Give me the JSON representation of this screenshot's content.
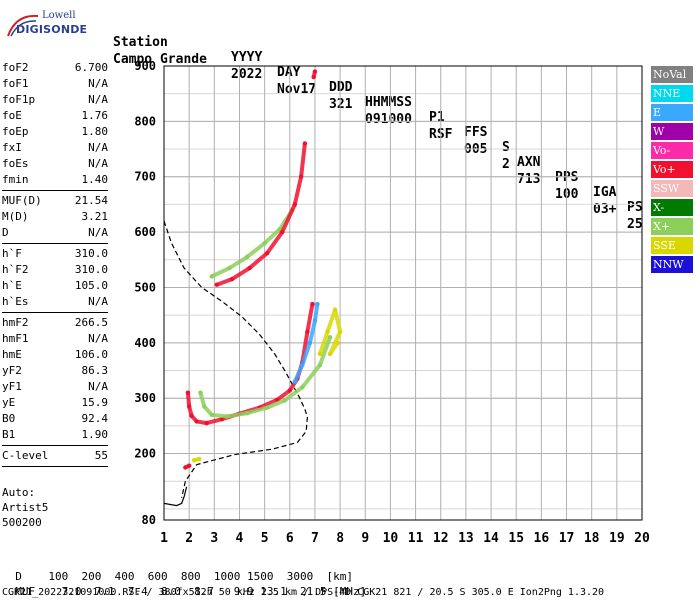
{
  "logo": {
    "top": "Lowell",
    "main": "DIGISONDE"
  },
  "header": {
    "row1": [
      "Station",
      "YYYY",
      "DAY",
      "DDD",
      "HHMMSS",
      "P1",
      "FFS",
      "S",
      "AXN",
      "PPS",
      "IGA",
      "PS"
    ],
    "row2": [
      "Campo Grande",
      "2022",
      "Nov17",
      "321",
      "091000",
      "RSF",
      "005",
      "2",
      "713",
      "100",
      "03+",
      "25"
    ]
  },
  "params": [
    {
      "k": "foF2",
      "v": "6.700"
    },
    {
      "k": "foF1",
      "v": "N/A"
    },
    {
      "k": "foF1p",
      "v": "N/A"
    },
    {
      "k": "foE",
      "v": "1.76"
    },
    {
      "k": "foEp",
      "v": "1.80"
    },
    {
      "k": "fxI",
      "v": "N/A"
    },
    {
      "k": "foEs",
      "v": "N/A"
    },
    {
      "k": "fmin",
      "v": "1.40"
    },
    {
      "k": "MUF(D)",
      "v": "21.54"
    },
    {
      "k": "M(D)",
      "v": "3.21"
    },
    {
      "k": "D",
      "v": "N/A"
    },
    {
      "k": "h`F",
      "v": "310.0"
    },
    {
      "k": "h`F2",
      "v": "310.0"
    },
    {
      "k": "h`E",
      "v": "105.0"
    },
    {
      "k": "h`Es",
      "v": "N/A"
    },
    {
      "k": "hmF2",
      "v": "266.5"
    },
    {
      "k": "hmF1",
      "v": "N/A"
    },
    {
      "k": "hmE",
      "v": "106.0"
    },
    {
      "k": "yF2",
      "v": "86.3"
    },
    {
      "k": "yF1",
      "v": "N/A"
    },
    {
      "k": "yE",
      "v": "15.9"
    },
    {
      "k": "B0",
      "v": "92.4"
    },
    {
      "k": "B1",
      "v": "1.90"
    },
    {
      "k": "C-level",
      "v": "55"
    }
  ],
  "auto": {
    "line1": "Auto:",
    "line2": "Artist5",
    "line3": "500200"
  },
  "legend": [
    {
      "label": "NoVal",
      "color": "#808080"
    },
    {
      "label": "NNE",
      "color": "#00d8f0"
    },
    {
      "label": "E",
      "color": "#3aa8ff"
    },
    {
      "label": "W",
      "color": "#a000a8"
    },
    {
      "label": "Vo-",
      "color": "#ff2aa8"
    },
    {
      "label": "Vo+",
      "color": "#f01030"
    },
    {
      "label": "SSW",
      "color": "#f4b8b8"
    },
    {
      "label": "X-",
      "color": "#007a00"
    },
    {
      "label": "X+",
      "color": "#8ccf5a"
    },
    {
      "label": "SSE",
      "color": "#d8d800"
    },
    {
      "label": "NNW",
      "color": "#1a10d8"
    }
  ],
  "footer": {
    "d_label": "D",
    "d_values": [
      "100",
      "200",
      "400",
      "600",
      "800",
      "1000",
      "1500",
      "3000",
      "[km]"
    ],
    "muf_label": "MUF",
    "muf_values": [
      "7.0",
      "7.1",
      "7.4",
      "8.0",
      "8.7",
      "9.9",
      "13.1",
      "21.5",
      "[MHz]"
    ],
    "info": "CGK21_2022321091000.RSF / 380fx512h 50 kHz 2.5 km / DPS-4D CGK21 821 / 20.5 S 305.0 E Ion2Png 1.3.20"
  },
  "chart_data": {
    "type": "scatter",
    "title": "",
    "xlabel": "",
    "ylabel": "",
    "xlim": [
      1,
      20
    ],
    "ylim": [
      80,
      900
    ],
    "x_ticks": [
      1,
      2,
      3,
      4,
      5,
      6,
      7,
      8,
      9,
      10,
      11,
      12,
      13,
      14,
      15,
      16,
      17,
      18,
      19,
      20
    ],
    "y_ticks": [
      80,
      200,
      300,
      400,
      500,
      600,
      700,
      800,
      900
    ],
    "grid": true,
    "series": [
      {
        "name": "Vo+",
        "color": "#f01030",
        "trace": [
          [
            1.95,
            310
          ],
          [
            2.0,
            285
          ],
          [
            2.1,
            268
          ],
          [
            2.3,
            258
          ],
          [
            2.7,
            255
          ],
          [
            3.3,
            262
          ],
          [
            4.0,
            272
          ],
          [
            4.8,
            283
          ],
          [
            5.5,
            297
          ],
          [
            6.0,
            314
          ],
          [
            6.3,
            335
          ],
          [
            6.5,
            365
          ],
          [
            6.7,
            420
          ],
          [
            6.9,
            470
          ]
        ]
      },
      {
        "name": "X+",
        "color": "#8ccf5a",
        "trace": [
          [
            2.45,
            310
          ],
          [
            2.6,
            285
          ],
          [
            2.9,
            270
          ],
          [
            3.5,
            267
          ],
          [
            4.3,
            273
          ],
          [
            5.1,
            283
          ],
          [
            5.8,
            296
          ],
          [
            6.5,
            320
          ],
          [
            7.2,
            360
          ],
          [
            7.6,
            410
          ]
        ]
      },
      {
        "name": "X+",
        "color": "#8ccf5a",
        "trace": [
          [
            2.9,
            520
          ],
          [
            3.6,
            535
          ],
          [
            4.3,
            555
          ],
          [
            5.0,
            580
          ],
          [
            5.6,
            605
          ],
          [
            6.1,
            640
          ]
        ]
      },
      {
        "name": "Vo+",
        "color": "#f01030",
        "trace": [
          [
            3.1,
            505
          ],
          [
            3.7,
            515
          ],
          [
            4.4,
            535
          ],
          [
            5.1,
            562
          ],
          [
            5.7,
            600
          ],
          [
            6.2,
            650
          ],
          [
            6.45,
            700
          ],
          [
            6.6,
            760
          ]
        ]
      },
      {
        "name": "SSE",
        "color": "#d8d800",
        "trace": [
          [
            7.2,
            380
          ],
          [
            7.5,
            420
          ],
          [
            7.8,
            460
          ],
          [
            8.0,
            420
          ],
          [
            7.6,
            380
          ],
          [
            7.9,
            400
          ]
        ]
      },
      {
        "name": "E",
        "color": "#3aa8ff",
        "trace": [
          [
            6.2,
            330
          ],
          [
            6.5,
            360
          ],
          [
            6.8,
            400
          ],
          [
            7.0,
            440
          ],
          [
            7.1,
            470
          ]
        ]
      },
      {
        "name": "Vo+",
        "color": "#f01030",
        "trace": [
          [
            1.85,
            175
          ],
          [
            2.0,
            178
          ]
        ]
      },
      {
        "name": "SSE",
        "color": "#d8d800",
        "trace": [
          [
            2.2,
            188
          ],
          [
            2.4,
            190
          ]
        ]
      },
      {
        "name": "Vo+",
        "color": "#f01030",
        "trace": [
          [
            6.95,
            880
          ],
          [
            7.0,
            890
          ]
        ]
      }
    ],
    "profile_dashed": [
      [
        1.0,
        620
      ],
      [
        1.3,
        580
      ],
      [
        1.8,
        535
      ],
      [
        2.5,
        500
      ],
      [
        3.3,
        475
      ],
      [
        4.1,
        447
      ],
      [
        4.8,
        415
      ],
      [
        5.4,
        380
      ],
      [
        5.8,
        350
      ],
      [
        6.1,
        325
      ],
      [
        6.4,
        300
      ],
      [
        6.6,
        280
      ],
      [
        6.7,
        266
      ],
      [
        6.65,
        240
      ],
      [
        6.3,
        220
      ],
      [
        5.3,
        208
      ],
      [
        3.8,
        198
      ],
      [
        2.3,
        180
      ],
      [
        1.85,
        150
      ],
      [
        1.7,
        120
      ]
    ],
    "profile_solid": [
      [
        1.0,
        110
      ],
      [
        1.5,
        106
      ],
      [
        1.7,
        110
      ],
      [
        1.8,
        122
      ],
      [
        1.9,
        140
      ]
    ]
  }
}
